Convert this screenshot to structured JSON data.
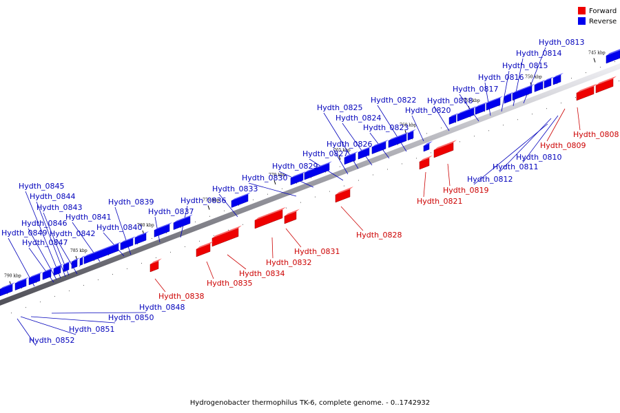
{
  "colors": {
    "forward": "#ee0000",
    "reverse": "#0000ee",
    "forward_label": "#cc0000",
    "reverse_label": "#0000bb",
    "axis": "#7f7f85"
  },
  "legend": {
    "forward": "Forward",
    "reverse": "Reverse"
  },
  "caption": "Hydrogenobacter thermophilus TK-6, complete genome. - 0..1742932",
  "ticks": [
    "745 kbp",
    "750 kbp",
    "755 kbp",
    "760 kbp",
    "765 kbp",
    "770 kbp",
    "775 kbp",
    "780 kbp",
    "785 kbp",
    "790 kbp"
  ],
  "genes": [
    {
      "name": "Hydth_0808",
      "strand": "forward"
    },
    {
      "name": "Hydth_0809",
      "strand": "forward"
    },
    {
      "name": "Hydth_0810",
      "strand": "reverse"
    },
    {
      "name": "Hydth_0811",
      "strand": "reverse"
    },
    {
      "name": "Hydth_0812",
      "strand": "reverse"
    },
    {
      "name": "Hydth_0813",
      "strand": "reverse"
    },
    {
      "name": "Hydth_0814",
      "strand": "reverse"
    },
    {
      "name": "Hydth_0815",
      "strand": "reverse"
    },
    {
      "name": "Hydth_0816",
      "strand": "reverse"
    },
    {
      "name": "Hydth_0817",
      "strand": "reverse"
    },
    {
      "name": "Hydth_0818",
      "strand": "reverse"
    },
    {
      "name": "Hydth_0819",
      "strand": "forward"
    },
    {
      "name": "Hydth_0820",
      "strand": "reverse"
    },
    {
      "name": "Hydth_0821",
      "strand": "forward"
    },
    {
      "name": "Hydth_0822",
      "strand": "reverse"
    },
    {
      "name": "Hydth_0823",
      "strand": "reverse"
    },
    {
      "name": "Hydth_0824",
      "strand": "reverse"
    },
    {
      "name": "Hydth_0825",
      "strand": "reverse"
    },
    {
      "name": "Hydth_0826",
      "strand": "reverse"
    },
    {
      "name": "Hydth_0827",
      "strand": "reverse"
    },
    {
      "name": "Hydth_0828",
      "strand": "forward"
    },
    {
      "name": "Hydth_0829",
      "strand": "reverse"
    },
    {
      "name": "Hydth_0830",
      "strand": "reverse"
    },
    {
      "name": "Hydth_0831",
      "strand": "forward"
    },
    {
      "name": "Hydth_0832",
      "strand": "forward"
    },
    {
      "name": "Hydth_0833",
      "strand": "reverse"
    },
    {
      "name": "Hydth_0834",
      "strand": "forward"
    },
    {
      "name": "Hydth_0835",
      "strand": "forward"
    },
    {
      "name": "Hydth_0836",
      "strand": "reverse"
    },
    {
      "name": "Hydth_0837",
      "strand": "reverse"
    },
    {
      "name": "Hydth_0838",
      "strand": "forward"
    },
    {
      "name": "Hydth_0839",
      "strand": "reverse"
    },
    {
      "name": "Hydth_0840",
      "strand": "reverse"
    },
    {
      "name": "Hydth_0841",
      "strand": "reverse"
    },
    {
      "name": "Hydth_0842",
      "strand": "reverse"
    },
    {
      "name": "Hydth_0843",
      "strand": "reverse"
    },
    {
      "name": "Hydth_0844",
      "strand": "reverse"
    },
    {
      "name": "Hydth_0845",
      "strand": "reverse"
    },
    {
      "name": "Hydth_0846",
      "strand": "reverse"
    },
    {
      "name": "Hydth_0847",
      "strand": "reverse"
    },
    {
      "name": "Hydth_0848",
      "strand": "reverse"
    },
    {
      "name": "Hydth_0849",
      "strand": "reverse"
    },
    {
      "name": "Hydth_0850",
      "strand": "reverse"
    },
    {
      "name": "Hydth_0851",
      "strand": "reverse"
    },
    {
      "name": "Hydth_0852",
      "strand": "reverse"
    }
  ]
}
